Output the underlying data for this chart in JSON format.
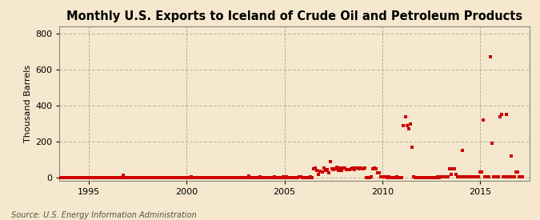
{
  "title": "Monthly U.S. Exports to Iceland of Crude Oil and Petroleum Products",
  "ylabel": "Thousand Barrels",
  "source": "Source: U.S. Energy Information Administration",
  "bg_color": "#f5e8ce",
  "plot_bg_color": "#f5e8ce",
  "marker_color": "#cc0000",
  "marker_size": 5,
  "xlim": [
    1993.5,
    2017.5
  ],
  "ylim": [
    -15,
    840
  ],
  "yticks": [
    0,
    200,
    400,
    600,
    800
  ],
  "xticks": [
    1995,
    2000,
    2005,
    2010,
    2015
  ],
  "title_fontsize": 10.5,
  "data": [
    [
      1993.583,
      0
    ],
    [
      1993.667,
      0
    ],
    [
      1993.75,
      0
    ],
    [
      1993.833,
      0
    ],
    [
      1993.917,
      0
    ],
    [
      1994.0,
      0
    ],
    [
      1994.083,
      0
    ],
    [
      1994.167,
      0
    ],
    [
      1994.25,
      0
    ],
    [
      1994.333,
      0
    ],
    [
      1994.417,
      0
    ],
    [
      1994.5,
      0
    ],
    [
      1994.583,
      0
    ],
    [
      1994.667,
      0
    ],
    [
      1994.75,
      0
    ],
    [
      1994.833,
      0
    ],
    [
      1994.917,
      0
    ],
    [
      1995.0,
      0
    ],
    [
      1995.083,
      0
    ],
    [
      1995.167,
      0
    ],
    [
      1995.25,
      0
    ],
    [
      1995.333,
      0
    ],
    [
      1995.417,
      0
    ],
    [
      1995.5,
      0
    ],
    [
      1995.583,
      0
    ],
    [
      1995.667,
      0
    ],
    [
      1995.75,
      0
    ],
    [
      1995.833,
      0
    ],
    [
      1995.917,
      0
    ],
    [
      1996.0,
      0
    ],
    [
      1996.083,
      0
    ],
    [
      1996.167,
      0
    ],
    [
      1996.25,
      0
    ],
    [
      1996.333,
      0
    ],
    [
      1996.417,
      0
    ],
    [
      1996.5,
      0
    ],
    [
      1996.583,
      0
    ],
    [
      1996.667,
      0
    ],
    [
      1996.75,
      15
    ],
    [
      1996.833,
      0
    ],
    [
      1996.917,
      0
    ],
    [
      1997.0,
      0
    ],
    [
      1997.083,
      0
    ],
    [
      1997.167,
      0
    ],
    [
      1997.25,
      0
    ],
    [
      1997.333,
      0
    ],
    [
      1997.417,
      0
    ],
    [
      1997.5,
      0
    ],
    [
      1997.583,
      0
    ],
    [
      1997.667,
      0
    ],
    [
      1997.75,
      0
    ],
    [
      1997.833,
      0
    ],
    [
      1997.917,
      0
    ],
    [
      1998.0,
      0
    ],
    [
      1998.083,
      0
    ],
    [
      1998.167,
      0
    ],
    [
      1998.25,
      0
    ],
    [
      1998.333,
      0
    ],
    [
      1998.417,
      0
    ],
    [
      1998.5,
      0
    ],
    [
      1998.583,
      0
    ],
    [
      1998.667,
      0
    ],
    [
      1998.75,
      0
    ],
    [
      1998.833,
      0
    ],
    [
      1998.917,
      0
    ],
    [
      1999.0,
      0
    ],
    [
      1999.083,
      0
    ],
    [
      1999.167,
      0
    ],
    [
      1999.25,
      0
    ],
    [
      1999.333,
      0
    ],
    [
      1999.417,
      0
    ],
    [
      1999.5,
      0
    ],
    [
      1999.583,
      0
    ],
    [
      1999.667,
      0
    ],
    [
      1999.75,
      0
    ],
    [
      1999.833,
      0
    ],
    [
      1999.917,
      0
    ],
    [
      2000.0,
      0
    ],
    [
      2000.083,
      0
    ],
    [
      2000.167,
      0
    ],
    [
      2000.25,
      5
    ],
    [
      2000.333,
      0
    ],
    [
      2000.417,
      0
    ],
    [
      2000.5,
      0
    ],
    [
      2000.583,
      0
    ],
    [
      2000.667,
      0
    ],
    [
      2000.75,
      0
    ],
    [
      2000.833,
      0
    ],
    [
      2000.917,
      0
    ],
    [
      2001.0,
      0
    ],
    [
      2001.083,
      0
    ],
    [
      2001.167,
      0
    ],
    [
      2001.25,
      0
    ],
    [
      2001.333,
      0
    ],
    [
      2001.417,
      0
    ],
    [
      2001.5,
      0
    ],
    [
      2001.583,
      0
    ],
    [
      2001.667,
      0
    ],
    [
      2001.75,
      0
    ],
    [
      2001.833,
      0
    ],
    [
      2001.917,
      0
    ],
    [
      2002.0,
      0
    ],
    [
      2002.083,
      0
    ],
    [
      2002.167,
      0
    ],
    [
      2002.25,
      0
    ],
    [
      2002.333,
      0
    ],
    [
      2002.417,
      0
    ],
    [
      2002.5,
      0
    ],
    [
      2002.583,
      0
    ],
    [
      2002.667,
      0
    ],
    [
      2002.75,
      0
    ],
    [
      2002.833,
      0
    ],
    [
      2002.917,
      0
    ],
    [
      2003.0,
      0
    ],
    [
      2003.083,
      0
    ],
    [
      2003.167,
      8
    ],
    [
      2003.25,
      0
    ],
    [
      2003.333,
      0
    ],
    [
      2003.417,
      0
    ],
    [
      2003.5,
      0
    ],
    [
      2003.583,
      0
    ],
    [
      2003.667,
      0
    ],
    [
      2003.75,
      5
    ],
    [
      2003.833,
      0
    ],
    [
      2003.917,
      0
    ],
    [
      2004.0,
      0
    ],
    [
      2004.083,
      0
    ],
    [
      2004.167,
      0
    ],
    [
      2004.25,
      0
    ],
    [
      2004.333,
      0
    ],
    [
      2004.417,
      0
    ],
    [
      2004.5,
      5
    ],
    [
      2004.583,
      0
    ],
    [
      2004.667,
      0
    ],
    [
      2004.75,
      0
    ],
    [
      2004.833,
      0
    ],
    [
      2004.917,
      5
    ],
    [
      2005.0,
      0
    ],
    [
      2005.083,
      5
    ],
    [
      2005.167,
      0
    ],
    [
      2005.25,
      0
    ],
    [
      2005.333,
      0
    ],
    [
      2005.417,
      0
    ],
    [
      2005.5,
      0
    ],
    [
      2005.583,
      0
    ],
    [
      2005.667,
      0
    ],
    [
      2005.75,
      5
    ],
    [
      2005.833,
      5
    ],
    [
      2005.917,
      0
    ],
    [
      2006.0,
      0
    ],
    [
      2006.083,
      0
    ],
    [
      2006.167,
      0
    ],
    [
      2006.25,
      0
    ],
    [
      2006.333,
      5
    ],
    [
      2006.417,
      0
    ],
    [
      2006.5,
      50
    ],
    [
      2006.583,
      55
    ],
    [
      2006.667,
      40
    ],
    [
      2006.75,
      20
    ],
    [
      2006.833,
      35
    ],
    [
      2006.917,
      30
    ],
    [
      2007.0,
      55
    ],
    [
      2007.083,
      40
    ],
    [
      2007.167,
      45
    ],
    [
      2007.25,
      25
    ],
    [
      2007.333,
      90
    ],
    [
      2007.417,
      50
    ],
    [
      2007.5,
      45
    ],
    [
      2007.583,
      50
    ],
    [
      2007.667,
      60
    ],
    [
      2007.75,
      40
    ],
    [
      2007.833,
      55
    ],
    [
      2007.917,
      40
    ],
    [
      2008.0,
      55
    ],
    [
      2008.083,
      55
    ],
    [
      2008.167,
      45
    ],
    [
      2008.25,
      45
    ],
    [
      2008.333,
      45
    ],
    [
      2008.417,
      50
    ],
    [
      2008.5,
      55
    ],
    [
      2008.583,
      45
    ],
    [
      2008.667,
      55
    ],
    [
      2008.75,
      55
    ],
    [
      2008.833,
      50
    ],
    [
      2008.917,
      55
    ],
    [
      2009.0,
      50
    ],
    [
      2009.083,
      55
    ],
    [
      2009.167,
      0
    ],
    [
      2009.25,
      0
    ],
    [
      2009.333,
      0
    ],
    [
      2009.417,
      5
    ],
    [
      2009.5,
      50
    ],
    [
      2009.583,
      55
    ],
    [
      2009.667,
      50
    ],
    [
      2009.75,
      25
    ],
    [
      2009.833,
      25
    ],
    [
      2009.917,
      5
    ],
    [
      2010.0,
      5
    ],
    [
      2010.083,
      5
    ],
    [
      2010.167,
      5
    ],
    [
      2010.25,
      0
    ],
    [
      2010.333,
      5
    ],
    [
      2010.417,
      0
    ],
    [
      2010.5,
      0
    ],
    [
      2010.583,
      0
    ],
    [
      2010.667,
      0
    ],
    [
      2010.75,
      5
    ],
    [
      2010.833,
      0
    ],
    [
      2010.917,
      0
    ],
    [
      2011.0,
      0
    ],
    [
      2011.083,
      290
    ],
    [
      2011.167,
      340
    ],
    [
      2011.25,
      290
    ],
    [
      2011.333,
      270
    ],
    [
      2011.417,
      300
    ],
    [
      2011.5,
      170
    ],
    [
      2011.583,
      5
    ],
    [
      2011.667,
      0
    ],
    [
      2011.75,
      0
    ],
    [
      2011.833,
      0
    ],
    [
      2011.917,
      0
    ],
    [
      2012.0,
      0
    ],
    [
      2012.083,
      0
    ],
    [
      2012.167,
      0
    ],
    [
      2012.25,
      0
    ],
    [
      2012.333,
      0
    ],
    [
      2012.417,
      0
    ],
    [
      2012.5,
      0
    ],
    [
      2012.583,
      0
    ],
    [
      2012.667,
      0
    ],
    [
      2012.75,
      0
    ],
    [
      2012.833,
      5
    ],
    [
      2012.917,
      0
    ],
    [
      2013.0,
      5
    ],
    [
      2013.083,
      5
    ],
    [
      2013.167,
      5
    ],
    [
      2013.25,
      5
    ],
    [
      2013.333,
      5
    ],
    [
      2013.417,
      50
    ],
    [
      2013.5,
      20
    ],
    [
      2013.583,
      50
    ],
    [
      2013.667,
      50
    ],
    [
      2013.75,
      20
    ],
    [
      2013.833,
      5
    ],
    [
      2013.917,
      5
    ],
    [
      2014.0,
      5
    ],
    [
      2014.083,
      150
    ],
    [
      2014.167,
      5
    ],
    [
      2014.25,
      5
    ],
    [
      2014.333,
      5
    ],
    [
      2014.417,
      5
    ],
    [
      2014.5,
      5
    ],
    [
      2014.583,
      5
    ],
    [
      2014.667,
      5
    ],
    [
      2014.75,
      5
    ],
    [
      2014.833,
      5
    ],
    [
      2014.917,
      5
    ],
    [
      2015.0,
      30
    ],
    [
      2015.083,
      30
    ],
    [
      2015.167,
      320
    ],
    [
      2015.25,
      5
    ],
    [
      2015.333,
      5
    ],
    [
      2015.417,
      5
    ],
    [
      2015.5,
      670
    ],
    [
      2015.583,
      190
    ],
    [
      2015.667,
      5
    ],
    [
      2015.75,
      5
    ],
    [
      2015.833,
      5
    ],
    [
      2015.917,
      5
    ],
    [
      2016.0,
      340
    ],
    [
      2016.083,
      350
    ],
    [
      2016.167,
      5
    ],
    [
      2016.25,
      5
    ],
    [
      2016.333,
      350
    ],
    [
      2016.417,
      5
    ],
    [
      2016.5,
      5
    ],
    [
      2016.583,
      120
    ],
    [
      2016.667,
      5
    ],
    [
      2016.75,
      5
    ],
    [
      2016.833,
      30
    ],
    [
      2016.917,
      30
    ],
    [
      2017.0,
      5
    ],
    [
      2017.083,
      5
    ],
    [
      2017.167,
      5
    ]
  ]
}
